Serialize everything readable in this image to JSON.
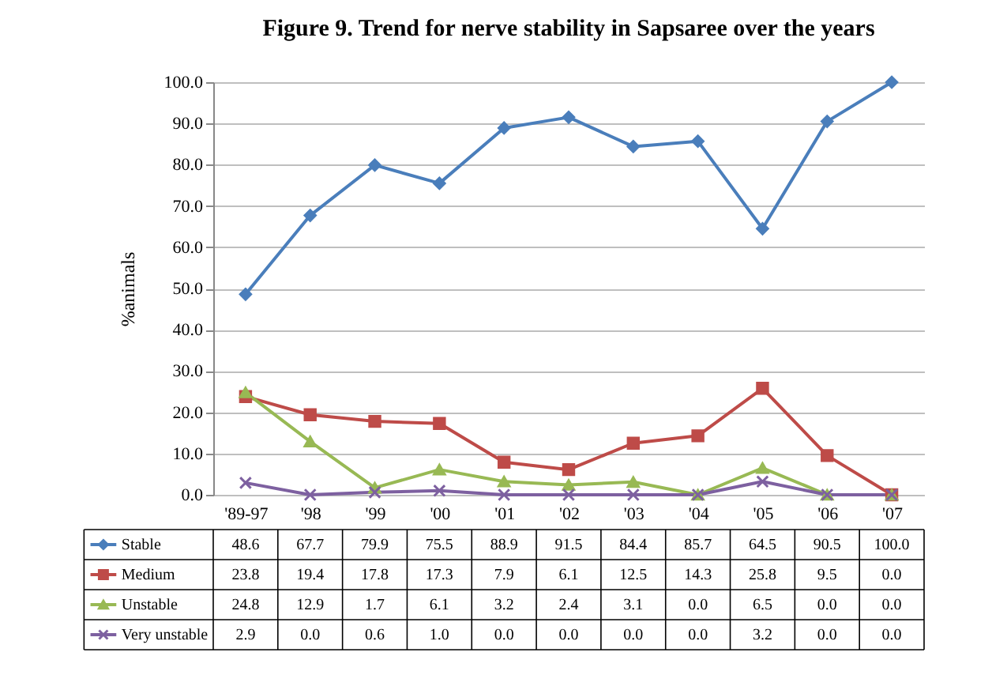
{
  "chart_data": {
    "type": "line",
    "title": "Figure 9. Trend for nerve stability in Sapsaree over the years",
    "ylabel": "%animals",
    "categories": [
      "'89-97",
      "'98",
      "'99",
      "'00",
      "'01",
      "'02",
      "'03",
      "'04",
      "'05",
      "'06",
      "'07"
    ],
    "ylim": [
      0,
      100
    ],
    "yticks": [
      {
        "value": 0,
        "label": "0.0"
      },
      {
        "value": 10,
        "label": "10.0"
      },
      {
        "value": 20,
        "label": "20.0"
      },
      {
        "value": 30,
        "label": "30.0"
      },
      {
        "value": 40,
        "label": "40.0"
      },
      {
        "value": 50,
        "label": "50.0"
      },
      {
        "value": 60,
        "label": "60.0"
      },
      {
        "value": 70,
        "label": "70.0"
      },
      {
        "value": 80,
        "label": "80.0"
      },
      {
        "value": 90,
        "label": "90.0"
      },
      {
        "value": 100,
        "label": "100.0"
      }
    ],
    "grid": "y",
    "legend": "bottom",
    "series": [
      {
        "name": "Stable",
        "color": "#4a7ebb",
        "marker": "diamond",
        "values": [
          48.6,
          67.7,
          79.9,
          75.5,
          88.9,
          91.5,
          84.4,
          85.7,
          64.5,
          90.5,
          100.0
        ],
        "value_labels": [
          "48.6",
          "67.7",
          "79.9",
          "75.5",
          "88.9",
          "91.5",
          "84.4",
          "85.7",
          "64.5",
          "90.5",
          "100.0"
        ]
      },
      {
        "name": "Medium",
        "color": "#be4b48",
        "marker": "square",
        "values": [
          23.8,
          19.4,
          17.8,
          17.3,
          7.9,
          6.1,
          12.5,
          14.3,
          25.8,
          9.5,
          0.0
        ],
        "value_labels": [
          "23.8",
          "19.4",
          "17.8",
          "17.3",
          "7.9",
          "6.1",
          "12.5",
          "14.3",
          "25.8",
          "9.5",
          "0.0"
        ]
      },
      {
        "name": "Unstable",
        "color": "#98b954",
        "marker": "triangle",
        "values": [
          24.8,
          12.9,
          1.7,
          6.1,
          3.2,
          2.4,
          3.1,
          0.0,
          6.5,
          0.0,
          0.0
        ],
        "value_labels": [
          "24.8",
          "12.9",
          "1.7",
          "6.1",
          "3.2",
          "2.4",
          "3.1",
          "0.0",
          "6.5",
          "0.0",
          "0.0"
        ]
      },
      {
        "name": "Very unstable",
        "color": "#7d60a0",
        "marker": "cross",
        "values": [
          2.9,
          0.0,
          0.6,
          1.0,
          0.0,
          0.0,
          0.0,
          0.0,
          3.2,
          0.0,
          0.0
        ],
        "value_labels": [
          "2.9",
          "0.0",
          "0.6",
          "1.0",
          "0.0",
          "0.0",
          "0.0",
          "0.0",
          "3.2",
          "0.0",
          "0.0"
        ]
      }
    ]
  }
}
